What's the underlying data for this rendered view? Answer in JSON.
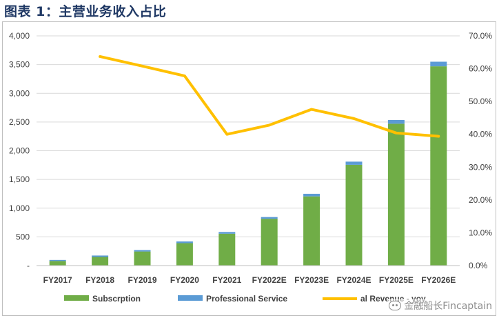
{
  "figure_title": "图表 1：主营业务收入占比",
  "watermark": "金融船长Fincaptain",
  "chart_data": {
    "type": "bar",
    "stacked": true,
    "categories": [
      "FY2017",
      "FY2018",
      "FY2019",
      "FY2020",
      "FY2021",
      "FY2022E",
      "FY2023E",
      "FY2024E",
      "FY2025E",
      "FY2026E"
    ],
    "series": [
      {
        "name": "Subscrption",
        "type": "bar",
        "axis": "left",
        "color": "#70ad47",
        "values": [
          80,
          150,
          245,
          390,
          555,
          815,
          1205,
          1755,
          2470,
          3470
        ]
      },
      {
        "name": "Professional Service",
        "type": "bar",
        "axis": "left",
        "color": "#5b9bd5",
        "values": [
          18,
          25,
          25,
          30,
          30,
          30,
          45,
          55,
          65,
          80
        ]
      },
      {
        "name": "Total Revenue - yoy",
        "type": "line",
        "axis": "right",
        "color": "#ffc000",
        "values": [
          null,
          63.7,
          60.8,
          57.8,
          40.0,
          42.8,
          47.6,
          44.8,
          40.4,
          39.4
        ]
      }
    ],
    "legend_labels": [
      "Subscrption",
      "Professional Service",
      "al Revenue - yoy"
    ],
    "ylim_left": [
      0,
      4000
    ],
    "yticks_left": [
      "4,000",
      "3,500",
      "3,000",
      "2,500",
      "2,000",
      "1,500",
      "1,000",
      "500",
      "-"
    ],
    "ylim_right": [
      0,
      70
    ],
    "yticks_right": [
      "70.0%",
      "60.0%",
      "50.0%",
      "40.0%",
      "30.0%",
      "20.0%",
      "10.0%",
      "0.0%"
    ],
    "grid": true,
    "legend_position": "bottom"
  }
}
